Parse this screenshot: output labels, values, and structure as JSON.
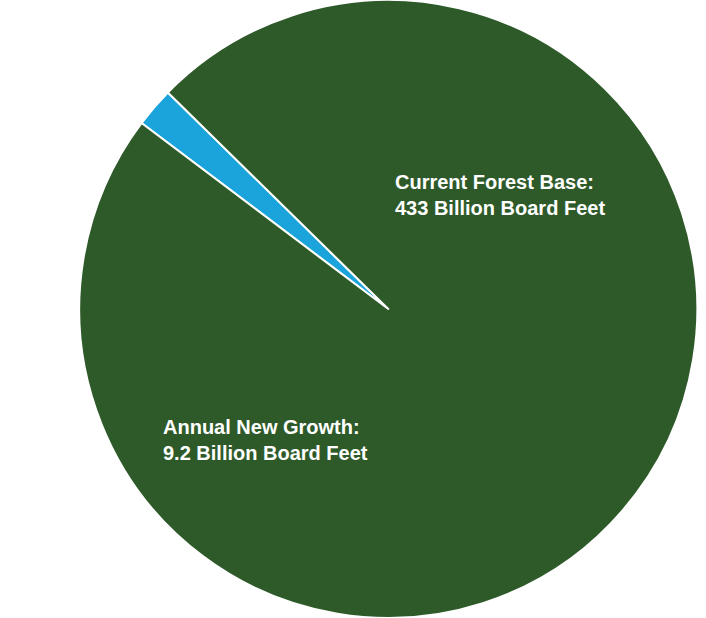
{
  "chart_data": {
    "type": "pie",
    "categories": [
      "Annual New Growth:",
      "Current Forest Base:"
    ],
    "values": [
      9.2,
      433
    ],
    "value_labels": [
      "9.2 Billion Board Feet",
      "433 Billion Board Feet"
    ],
    "colors": [
      "#1ba3dc",
      "#2e5a2a"
    ],
    "data_labels": true
  }
}
